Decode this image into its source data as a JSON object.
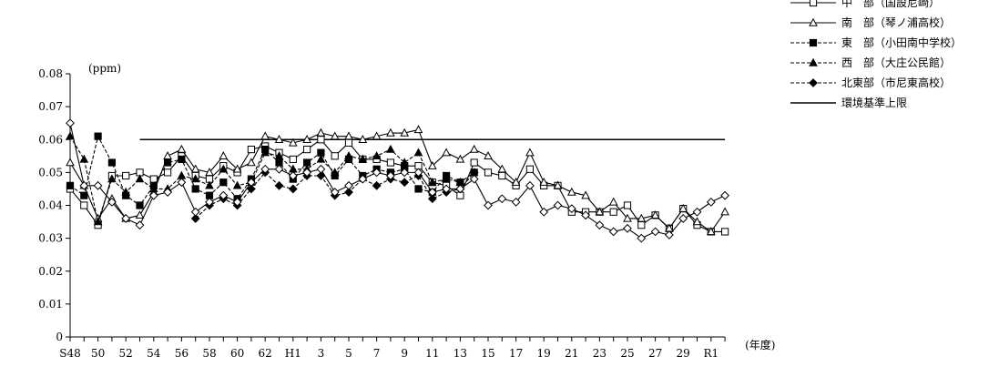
{
  "chart_data": {
    "type": "line",
    "y_unit_label": "(ppm)",
    "x_unit_label": "(年度)",
    "ylim": [
      0,
      0.08
    ],
    "y_ticks": [
      "0",
      "0.01",
      "0.02",
      "0.03",
      "0.04",
      "0.05",
      "0.06",
      "0.07",
      "0.08"
    ],
    "y_tick_values": [
      0,
      0.01,
      0.02,
      0.03,
      0.04,
      0.05,
      0.06,
      0.07,
      0.08
    ],
    "x_labels": [
      "S48",
      "",
      "50",
      "",
      "52",
      "",
      "54",
      "",
      "56",
      "",
      "58",
      "",
      "60",
      "",
      "62",
      "",
      "H1",
      "",
      "3",
      "",
      "5",
      "",
      "7",
      "",
      "9",
      "",
      "11",
      "",
      "13",
      "",
      "15",
      "",
      "17",
      "",
      "19",
      "",
      "21",
      "",
      "23",
      "",
      "25",
      "",
      "27",
      "",
      "29",
      "",
      "R1",
      ""
    ],
    "grid": false,
    "legend_position": "top-right",
    "series": [
      {
        "name": "中　部（国設尼崎）",
        "marker": "open-square",
        "dash": "solid",
        "values": [
          0.045,
          0.04,
          0.034,
          0.049,
          0.049,
          0.05,
          0.048,
          0.05,
          0.055,
          0.049,
          0.048,
          0.052,
          0.05,
          0.057,
          0.058,
          0.056,
          0.054,
          0.057,
          0.06,
          0.055,
          0.059,
          0.054,
          0.054,
          0.053,
          0.052,
          0.052,
          0.047,
          0.046,
          0.043,
          0.053,
          0.05,
          0.049,
          0.046,
          0.051,
          0.046,
          0.046,
          0.038,
          0.038,
          0.038,
          0.038,
          0.04,
          0.034,
          0.037,
          0.033,
          0.039,
          0.034,
          0.032,
          0.032
        ]
      },
      {
        "name": "南　部（琴ノ浦高校）",
        "marker": "open-triangle",
        "dash": "solid",
        "values": [
          0.053,
          0.046,
          0.036,
          0.042,
          0.036,
          0.037,
          0.044,
          0.055,
          0.057,
          0.051,
          0.05,
          0.055,
          0.051,
          0.053,
          0.061,
          0.06,
          0.059,
          0.06,
          0.062,
          0.061,
          0.061,
          0.06,
          0.061,
          0.062,
          0.062,
          0.063,
          0.052,
          0.056,
          0.054,
          0.057,
          0.055,
          0.051,
          0.047,
          0.056,
          0.047,
          0.046,
          0.044,
          0.043,
          0.038,
          0.041,
          0.036,
          0.036,
          0.037,
          0.033,
          0.039,
          0.035,
          0.032,
          0.038
        ]
      },
      {
        "name": "東　部（小田南中学校）",
        "marker": "filled-square",
        "dash": "dashed",
        "values": [
          0.046,
          0.043,
          0.061,
          0.053,
          0.043,
          0.04,
          0.046,
          0.053,
          0.054,
          0.045,
          0.043,
          0.047,
          0.042,
          0.048,
          0.057,
          0.053,
          0.048,
          0.053,
          0.056,
          0.049,
          0.054,
          0.049,
          0.051,
          0.05,
          0.051,
          0.045,
          0.044,
          0.049,
          0.047,
          0.05,
          null,
          null,
          null,
          null,
          null,
          null,
          null,
          null,
          null,
          null,
          null,
          null,
          null,
          null,
          null,
          null,
          null,
          null
        ]
      },
      {
        "name": "西　部（大庄公民館）",
        "marker": "filled-triangle",
        "dash": "dashed",
        "values": [
          0.061,
          0.054,
          0.035,
          0.048,
          0.044,
          0.048,
          0.045,
          0.045,
          0.049,
          0.048,
          0.046,
          0.051,
          0.046,
          0.047,
          0.056,
          0.055,
          0.051,
          0.051,
          0.054,
          0.05,
          0.055,
          0.054,
          0.055,
          0.057,
          0.053,
          0.056,
          0.047,
          0.048,
          0.047,
          null,
          null,
          null,
          null,
          null,
          null,
          null,
          null,
          null,
          null,
          null,
          null,
          null,
          null,
          null,
          null,
          null,
          null,
          null
        ]
      },
      {
        "name": "北東部（市尼東高校）",
        "marker": "filled-diamond",
        "dash": "dashed",
        "values": [
          null,
          null,
          null,
          null,
          null,
          null,
          null,
          null,
          null,
          0.036,
          0.04,
          0.042,
          0.04,
          0.045,
          0.05,
          0.046,
          0.045,
          0.049,
          0.049,
          0.043,
          0.044,
          0.048,
          0.046,
          0.048,
          0.047,
          0.049,
          0.042,
          0.044,
          0.045,
          0.05,
          null,
          null,
          null,
          null,
          null,
          null,
          null,
          null,
          null,
          null,
          null,
          null,
          null,
          null,
          null,
          null,
          null,
          null
        ]
      },
      {
        "name": "",
        "marker": "open-diamond",
        "dash": "solid",
        "values": [
          0.065,
          0.046,
          0.046,
          0.041,
          0.036,
          0.034,
          0.043,
          0.044,
          0.047,
          0.038,
          0.041,
          0.043,
          0.041,
          0.047,
          0.051,
          0.051,
          0.049,
          0.05,
          0.051,
          0.044,
          0.046,
          0.048,
          0.05,
          0.049,
          0.05,
          0.05,
          0.044,
          0.045,
          0.045,
          0.048,
          0.04,
          0.042,
          0.041,
          0.046,
          0.038,
          0.04,
          0.039,
          0.037,
          0.034,
          0.032,
          0.033,
          0.03,
          0.032,
          0.031,
          0.036,
          0.038,
          0.041,
          0.043
        ]
      }
    ],
    "reference_line": {
      "name": "環境基準上限",
      "value": 0.06,
      "x_start_index": 5,
      "x_end_index": 47
    }
  }
}
